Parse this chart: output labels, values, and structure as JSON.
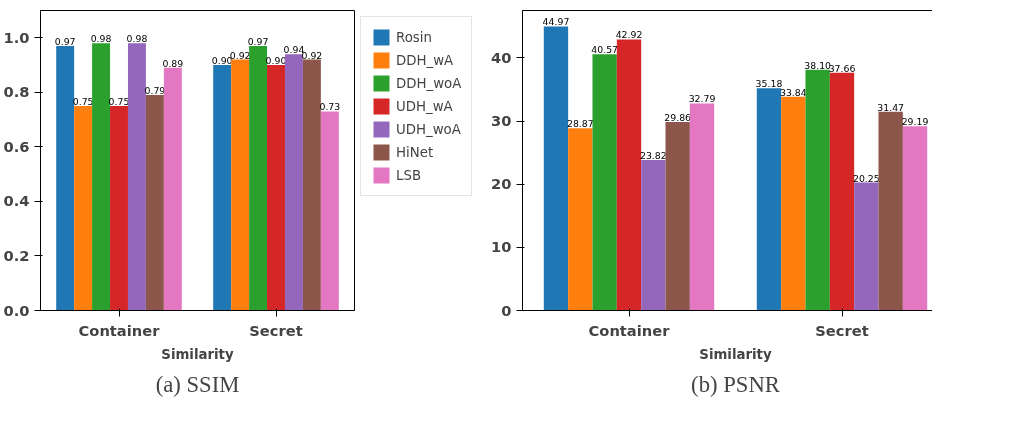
{
  "chart_data": [
    {
      "type": "bar",
      "title": "(a) SSIM",
      "xlabel": "Similarity",
      "categories": [
        "Container",
        "Secret"
      ],
      "ylim": [
        0,
        1.1
      ],
      "yticks": [
        {
          "value": 0,
          "label": "0.0"
        },
        {
          "value": 0.2,
          "label": "0.2"
        },
        {
          "value": 0.4,
          "label": "0.4"
        },
        {
          "value": 0.6,
          "label": "0.6"
        },
        {
          "value": 0.8,
          "label": "0.8"
        },
        {
          "value": 1.0,
          "label": "1.0"
        }
      ],
      "legend": "right",
      "series": [
        {
          "name": "Rosin",
          "color": "#1f77b4",
          "values": [
            0.97,
            0.9
          ],
          "value_labels": [
            "0.97",
            "0.90"
          ]
        },
        {
          "name": "DDH_wA",
          "color": "#ff7f0e",
          "values": [
            0.75,
            0.92
          ],
          "value_labels": [
            "0.75",
            "0.92"
          ]
        },
        {
          "name": "DDH_woA",
          "color": "#2ca02c",
          "values": [
            0.98,
            0.97
          ],
          "value_labels": [
            "0.98",
            "0.97"
          ]
        },
        {
          "name": "UDH_wA",
          "color": "#d62728",
          "values": [
            0.75,
            0.9
          ],
          "value_labels": [
            "0.75",
            "0.90"
          ]
        },
        {
          "name": "UDH_woA",
          "color": "#9467bd",
          "values": [
            0.98,
            0.94
          ],
          "value_labels": [
            "0.98",
            "0.94"
          ]
        },
        {
          "name": "HiNet",
          "color": "#8c564b",
          "values": [
            0.79,
            0.92
          ],
          "value_labels": [
            "0.79",
            "0.92"
          ]
        },
        {
          "name": "LSB",
          "color": "#e377c2",
          "values": [
            0.89,
            0.73
          ],
          "value_labels": [
            "0.89",
            "0.73"
          ]
        }
      ]
    },
    {
      "type": "bar",
      "title": "(b) PSNR",
      "xlabel": "Similarity",
      "categories": [
        "Container",
        "Secret"
      ],
      "ylim": [
        0,
        47.5
      ],
      "yticks": [
        0,
        10,
        20,
        30,
        40
      ],
      "series": [
        {
          "color": "#1f77b4",
          "values": [
            44.97,
            35.18
          ],
          "value_labels": [
            "44.97",
            "35.18"
          ]
        },
        {
          "color": "#ff7f0e",
          "values": [
            28.87,
            33.84
          ],
          "value_labels": [
            "28.87",
            "33.84"
          ]
        },
        {
          "color": "#2ca02c",
          "values": [
            40.57,
            38.1
          ],
          "value_labels": [
            "40.57",
            "38.10"
          ]
        },
        {
          "color": "#d62728",
          "values": [
            42.92,
            37.66
          ],
          "value_labels": [
            "42.92",
            "37.66"
          ]
        },
        {
          "color": "#9467bd",
          "values": [
            23.82,
            20.25
          ],
          "value_labels": [
            "23.82",
            "20.25"
          ]
        },
        {
          "color": "#8c564b",
          "values": [
            29.86,
            31.47
          ],
          "value_labels": [
            "29.86",
            "31.47"
          ]
        },
        {
          "color": "#e377c2",
          "values": [
            32.79,
            29.19
          ],
          "value_labels": [
            "32.79",
            "29.19"
          ]
        }
      ]
    }
  ]
}
